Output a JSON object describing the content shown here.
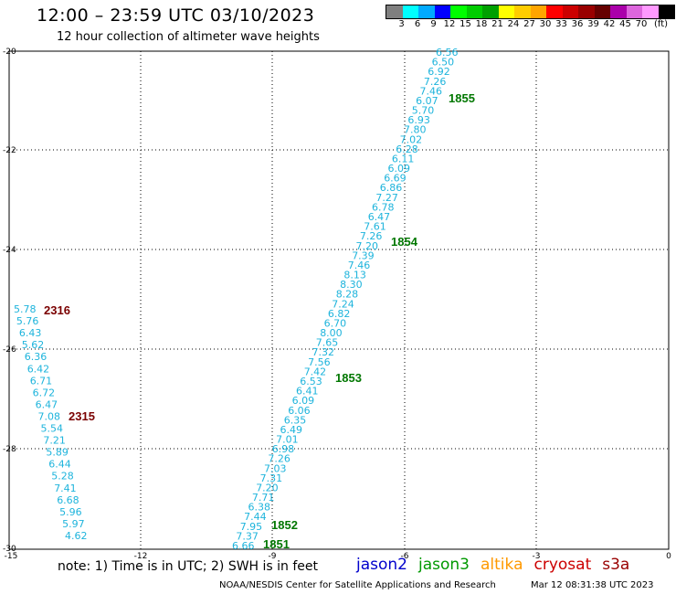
{
  "header": {
    "title": "12:00 – 23:59 UTC 03/10/2023",
    "subtitle": "12 hour collection of altimeter wave heights"
  },
  "colorbar": {
    "colors": [
      "#7f7f7f",
      "#00ffff",
      "#00aaff",
      "#0000ff",
      "#00ff00",
      "#00cc00",
      "#00a000",
      "#ffff00",
      "#ffcc00",
      "#ffa500",
      "#ff0000",
      "#cc0000",
      "#990000",
      "#660000",
      "#aa00aa",
      "#dd66dd",
      "#ff99ff",
      "#000000"
    ],
    "labels": [
      "3",
      "6",
      "9",
      "12",
      "15",
      "18",
      "21",
      "24",
      "27",
      "30",
      "33",
      "36",
      "39",
      "42",
      "45",
      "70",
      "(ft)"
    ]
  },
  "axes": {
    "x_ticks": [
      "-15",
      "-12",
      "-9",
      "-6",
      "-3",
      "0"
    ],
    "y_ticks": [
      "-20",
      "-22",
      "-24",
      "-26",
      "-28",
      "-30"
    ]
  },
  "tracks": {
    "east": {
      "color": "#1eb4dc",
      "values": [
        "6.56",
        "6.50",
        "6.92",
        "7.26",
        "7.46",
        "6.07",
        "5.70",
        "6.93",
        "7.80",
        "7.02",
        "6.28",
        "6.11",
        "6.09",
        "6.69",
        "6.86",
        "7.27",
        "6.78",
        "6.47",
        "7.61",
        "7.26",
        "7.20",
        "7.39",
        "7.46",
        "8.13",
        "8.30",
        "8.28",
        "7.24",
        "6.82",
        "6.70",
        "8.00",
        "7.65",
        "7.32",
        "7.56",
        "7.42",
        "6.53",
        "6.41",
        "6.09",
        "6.06",
        "6.35",
        "6.49",
        "7.01",
        "6.98",
        "7.26",
        "7.03",
        "7.31",
        "7.20",
        "7.71",
        "6.38",
        "7.44",
        "7.95",
        "7.37",
        "6.66"
      ]
    },
    "west": {
      "color": "#1eb4dc",
      "values": [
        "5.78",
        "5.76",
        "6.43",
        "5.62",
        "6.36",
        "6.42",
        "6.71",
        "6.72",
        "6.47",
        "7.08",
        "5.54",
        "7.21",
        "5.89",
        "6.44",
        "5.28",
        "7.41",
        "6.68",
        "5.96",
        "5.97",
        "4.62"
      ]
    }
  },
  "time_labels": {
    "green_color": "#007700",
    "darkred_color": "#7a0000",
    "t1855": "1855",
    "t1854": "1854",
    "t1853": "1853",
    "t1852": "1852",
    "t1851": "1851",
    "t2316": "2316",
    "t2315": "2315"
  },
  "footer": {
    "note": "note: 1) Time is in UTC; 2) SWH is in feet",
    "satellites": [
      {
        "name": "jason2",
        "color": "#0000cc"
      },
      {
        "name": "jason3",
        "color": "#009900"
      },
      {
        "name": "altika",
        "color": "#ff9900"
      },
      {
        "name": "cryosat",
        "color": "#cc0000"
      },
      {
        "name": "s3a",
        "color": "#990000"
      }
    ],
    "credit": "NOAA/NESDIS Center for Satellite Applications and Research",
    "timestamp": "Mar 12 08:31:38 UTC 2023"
  }
}
